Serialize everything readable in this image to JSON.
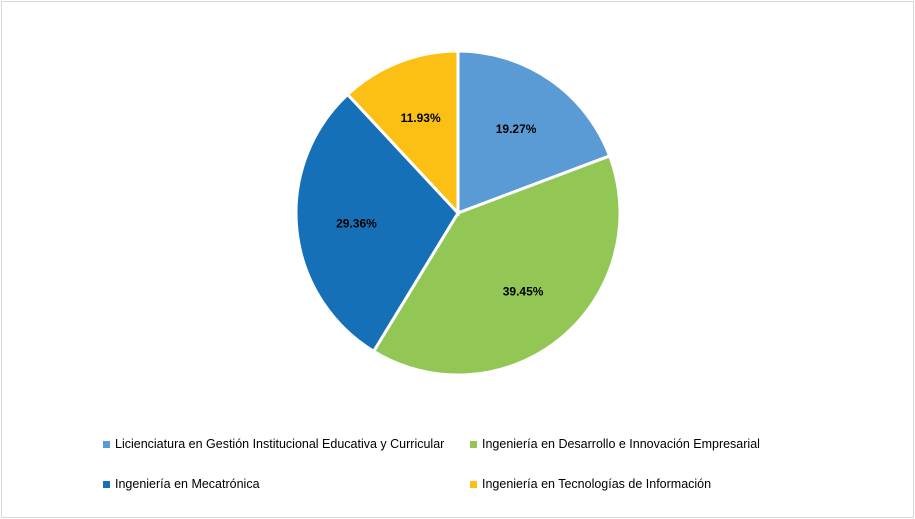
{
  "chart_data": {
    "type": "pie",
    "categories": [
      "Licienciatura en Gestión Institucional Educativa y Curricular",
      "Ingeniería en Desarrollo e Innovación Empresarial",
      "Ingeniería en Mecatrónica",
      "Ingeniería en Tecnologías de Información"
    ],
    "values": [
      19.27,
      39.45,
      29.36,
      11.93
    ],
    "data_labels": [
      "19.27%",
      "39.45%",
      "29.36%",
      "11.93%"
    ],
    "colors": [
      "#5b9bd5",
      "#92c756",
      "#1670b8",
      "#fcbf14"
    ],
    "legend_placement": "bottom"
  }
}
